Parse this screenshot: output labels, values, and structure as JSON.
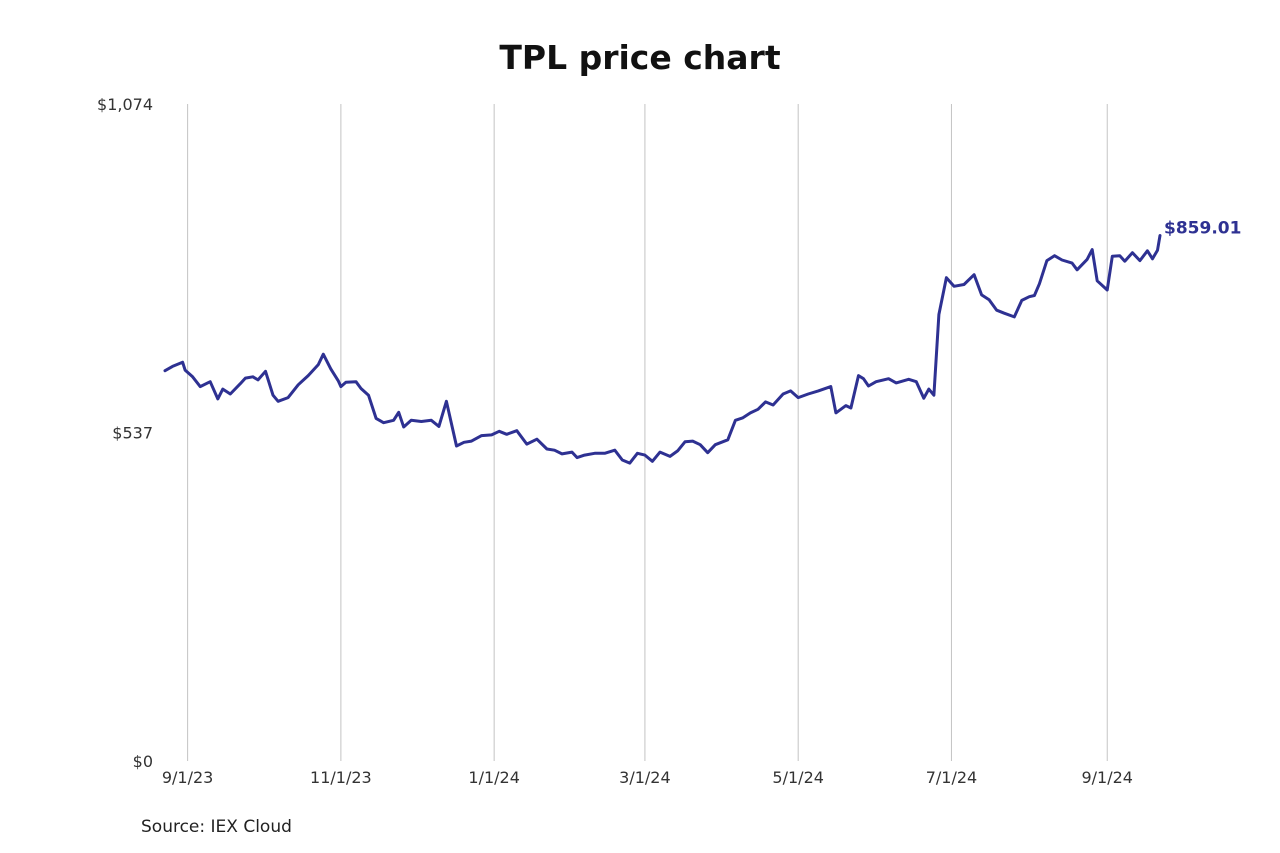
{
  "chart_data": {
    "type": "line",
    "title": "TPL price chart",
    "source": "Source: IEX Cloud",
    "xlabel": "",
    "ylabel": "",
    "ylim": [
      0,
      1074
    ],
    "y_ticks": [
      {
        "value": 0,
        "label": "$0"
      },
      {
        "value": 537,
        "label": "$537"
      },
      {
        "value": 1074,
        "label": "$1,074"
      }
    ],
    "x_ticks": [
      {
        "date": "2023-09-01",
        "label": "9/1/23"
      },
      {
        "date": "2023-11-01",
        "label": "11/1/23"
      },
      {
        "date": "2024-01-01",
        "label": "1/1/24"
      },
      {
        "date": "2024-03-01",
        "label": "3/1/24"
      },
      {
        "date": "2024-05-01",
        "label": "5/1/24"
      },
      {
        "date": "2024-07-01",
        "label": "7/1/24"
      },
      {
        "date": "2024-09-01",
        "label": "9/1/24"
      }
    ],
    "xlim": [
      "2023-08-23",
      "2024-09-22"
    ],
    "grid": {
      "vertical": true,
      "horizontal": false
    },
    "line_color": "#2e3192",
    "end_label": "$859.01",
    "series": [
      {
        "points": [
          [
            "2023-08-23",
            638
          ],
          [
            "2023-08-26",
            645
          ],
          [
            "2023-08-30",
            652
          ],
          [
            "2023-08-31",
            639
          ],
          [
            "2023-09-03",
            628
          ],
          [
            "2023-09-06",
            612
          ],
          [
            "2023-09-10",
            620
          ],
          [
            "2023-09-13",
            592
          ],
          [
            "2023-09-15",
            608
          ],
          [
            "2023-09-18",
            600
          ],
          [
            "2023-09-22",
            617
          ],
          [
            "2023-09-24",
            626
          ],
          [
            "2023-09-27",
            628
          ],
          [
            "2023-09-29",
            623
          ],
          [
            "2023-10-02",
            637
          ],
          [
            "2023-10-05",
            598
          ],
          [
            "2023-10-07",
            588
          ],
          [
            "2023-10-11",
            594
          ],
          [
            "2023-10-15",
            615
          ],
          [
            "2023-10-19",
            630
          ],
          [
            "2023-10-23",
            648
          ],
          [
            "2023-10-25",
            665
          ],
          [
            "2023-10-28",
            641
          ],
          [
            "2023-10-31",
            621
          ],
          [
            "2023-11-01",
            612
          ],
          [
            "2023-11-03",
            619
          ],
          [
            "2023-11-07",
            620
          ],
          [
            "2023-11-09",
            609
          ],
          [
            "2023-11-12",
            598
          ],
          [
            "2023-11-15",
            560
          ],
          [
            "2023-11-18",
            553
          ],
          [
            "2023-11-22",
            557
          ],
          [
            "2023-11-24",
            570
          ],
          [
            "2023-11-26",
            546
          ],
          [
            "2023-11-29",
            557
          ],
          [
            "2023-12-03",
            555
          ],
          [
            "2023-12-07",
            557
          ],
          [
            "2023-12-10",
            547
          ],
          [
            "2023-12-13",
            588
          ],
          [
            "2023-12-17",
            515
          ],
          [
            "2023-12-20",
            521
          ],
          [
            "2023-12-23",
            523
          ],
          [
            "2023-12-27",
            532
          ],
          [
            "2023-12-31",
            533
          ],
          [
            "2024-01-03",
            539
          ],
          [
            "2024-01-06",
            534
          ],
          [
            "2024-01-10",
            540
          ],
          [
            "2024-01-14",
            518
          ],
          [
            "2024-01-18",
            526
          ],
          [
            "2024-01-22",
            510
          ],
          [
            "2024-01-25",
            508
          ],
          [
            "2024-01-28",
            502
          ],
          [
            "2024-02-01",
            505
          ],
          [
            "2024-02-03",
            496
          ],
          [
            "2024-02-06",
            500
          ],
          [
            "2024-02-10",
            503
          ],
          [
            "2024-02-14",
            503
          ],
          [
            "2024-02-18",
            508
          ],
          [
            "2024-02-21",
            492
          ],
          [
            "2024-02-24",
            487
          ],
          [
            "2024-02-27",
            503
          ],
          [
            "2024-03-01",
            500
          ],
          [
            "2024-03-04",
            490
          ],
          [
            "2024-03-07",
            505
          ],
          [
            "2024-03-11",
            498
          ],
          [
            "2024-03-14",
            507
          ],
          [
            "2024-03-17",
            522
          ],
          [
            "2024-03-20",
            523
          ],
          [
            "2024-03-23",
            517
          ],
          [
            "2024-03-26",
            504
          ],
          [
            "2024-03-29",
            517
          ],
          [
            "2024-04-03",
            525
          ],
          [
            "2024-04-06",
            557
          ],
          [
            "2024-04-09",
            561
          ],
          [
            "2024-04-12",
            569
          ],
          [
            "2024-04-15",
            575
          ],
          [
            "2024-04-18",
            587
          ],
          [
            "2024-04-21",
            582
          ],
          [
            "2024-04-25",
            600
          ],
          [
            "2024-04-28",
            605
          ],
          [
            "2024-05-01",
            594
          ],
          [
            "2024-05-05",
            600
          ],
          [
            "2024-05-09",
            605
          ],
          [
            "2024-05-14",
            612
          ],
          [
            "2024-05-16",
            569
          ],
          [
            "2024-05-20",
            581
          ],
          [
            "2024-05-22",
            577
          ],
          [
            "2024-05-25",
            630
          ],
          [
            "2024-05-27",
            625
          ],
          [
            "2024-05-29",
            613
          ],
          [
            "2024-06-01",
            620
          ],
          [
            "2024-06-06",
            625
          ],
          [
            "2024-06-09",
            618
          ],
          [
            "2024-06-14",
            624
          ],
          [
            "2024-06-17",
            620
          ],
          [
            "2024-06-20",
            593
          ],
          [
            "2024-06-22",
            608
          ],
          [
            "2024-06-24",
            598
          ],
          [
            "2024-06-26",
            730
          ],
          [
            "2024-06-29",
            790
          ],
          [
            "2024-07-02",
            776
          ],
          [
            "2024-07-06",
            779
          ],
          [
            "2024-07-10",
            795
          ],
          [
            "2024-07-13",
            762
          ],
          [
            "2024-07-16",
            754
          ],
          [
            "2024-07-19",
            737
          ],
          [
            "2024-07-22",
            732
          ],
          [
            "2024-07-26",
            726
          ],
          [
            "2024-07-29",
            753
          ],
          [
            "2024-08-01",
            759
          ],
          [
            "2024-08-03",
            761
          ],
          [
            "2024-08-05",
            780
          ],
          [
            "2024-08-08",
            818
          ],
          [
            "2024-08-11",
            826
          ],
          [
            "2024-08-14",
            819
          ],
          [
            "2024-08-18",
            814
          ],
          [
            "2024-08-20",
            803
          ],
          [
            "2024-08-24",
            820
          ],
          [
            "2024-08-26",
            836
          ],
          [
            "2024-08-28",
            785
          ],
          [
            "2024-09-01",
            770
          ],
          [
            "2024-09-03",
            825
          ],
          [
            "2024-09-06",
            826
          ],
          [
            "2024-09-08",
            817
          ],
          [
            "2024-09-11",
            831
          ],
          [
            "2024-09-14",
            818
          ],
          [
            "2024-09-17",
            834
          ],
          [
            "2024-09-19",
            821
          ],
          [
            "2024-09-21",
            835
          ],
          [
            "2024-09-22",
            859.01
          ]
        ]
      }
    ]
  }
}
